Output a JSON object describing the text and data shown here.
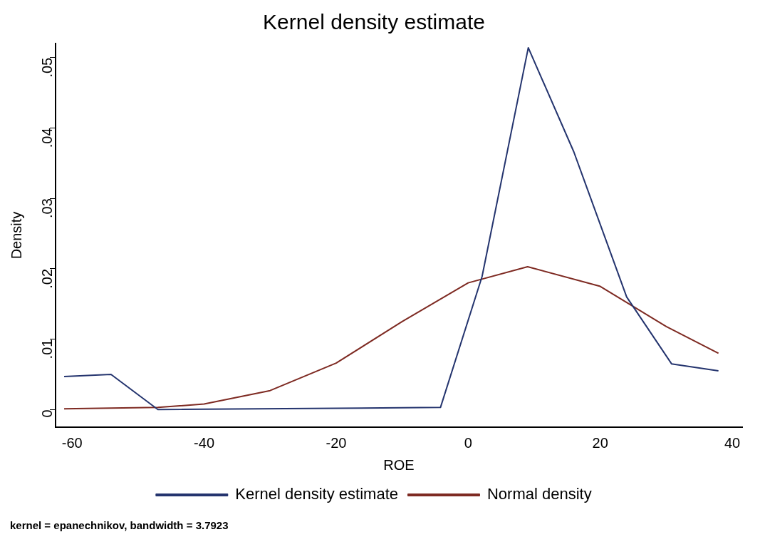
{
  "chart_data": {
    "type": "line",
    "title": "Kernel density estimate",
    "xlabel": "ROE",
    "ylabel": "Density",
    "xlim": [
      -62.5,
      41.5
    ],
    "xticks": [
      -60,
      -40,
      -20,
      0,
      20,
      40
    ],
    "ylim": [
      -0.0025,
      0.052
    ],
    "yticks": [
      {
        "value": 0,
        "label": "0"
      },
      {
        "value": 0.01,
        "label": ".01"
      },
      {
        "value": 0.02,
        "label": ".02"
      },
      {
        "value": 0.03,
        "label": ".03"
      },
      {
        "value": 0.04,
        "label": ".04"
      },
      {
        "value": 0.05,
        "label": ".05"
      }
    ],
    "series": [
      {
        "name": "Kernel density estimate",
        "color": "#24346e",
        "x": [
          -61.2,
          -54.1,
          -47,
          -4.2,
          2.1,
          9.1,
          16,
          24,
          30.8,
          37.9
        ],
        "values": [
          0.0047,
          0.005,
          0,
          0.0003,
          0.0189,
          0.0514,
          0.0366,
          0.016,
          0.0065,
          0.0055
        ]
      },
      {
        "name": "Normal density",
        "color": "#7e2a22",
        "x": [
          -61.2,
          -47,
          -40,
          -30,
          -20,
          -10,
          0,
          9,
          20,
          30,
          37.9
        ],
        "values": [
          0.0001,
          0.0003,
          0.0008,
          0.0027,
          0.0066,
          0.0125,
          0.018,
          0.0203,
          0.0175,
          0.0118,
          0.008
        ]
      }
    ],
    "grid": false,
    "legend": "bottom",
    "marker": "none",
    "line_style": "solid",
    "annotations": [
      "kernel = epanechnikov, bandwidth = 3.7923"
    ]
  }
}
